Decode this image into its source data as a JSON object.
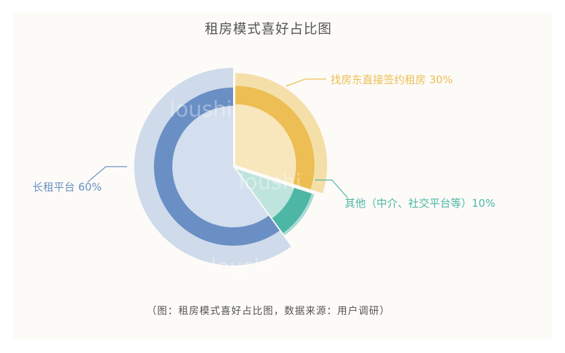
{
  "chart_data": {
    "type": "pie",
    "title": "租房模式喜好占比图",
    "caption": "（图：租房模式喜好占比图，数据来源：用户调研）",
    "slices": [
      {
        "label": "找房东直接签约租房",
        "value": 30,
        "display": "找房东直接签约租房 30%",
        "color": "#ecbe53",
        "outer_color": "#f5dfa9",
        "inner_color": "#f8e6bc"
      },
      {
        "label": "其他（中介、社交平台等）",
        "value": 10,
        "display": "其他（中介、社交平台等）10%",
        "color": "#4db6a5",
        "outer_color": "#a8dbd3",
        "inner_color": "#bfe4de"
      },
      {
        "label": "长租平台",
        "value": 60,
        "display": "长租平台 60%",
        "color": "#6a8fc4",
        "outer_color": "#cfdbea",
        "inner_color": "#d3dfee"
      }
    ],
    "legend": "none",
    "grid": false
  },
  "watermark": "loushi"
}
